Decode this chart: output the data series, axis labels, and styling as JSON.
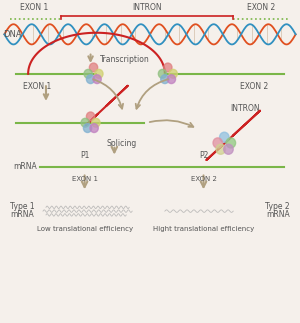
{
  "bg_color": "#f5f0eb",
  "exon1_label": "EXON 1",
  "exon2_label": "EXON 2",
  "intron_label": "INTRON",
  "dna_label": "DNA",
  "transcription_label": "Transcription",
  "mrna_label": "mRNA",
  "splicing_label": "Splicing",
  "p1_label": "P1",
  "p2_label": "P2",
  "exon1_label2": "EXON 1",
  "exon2_label2": "EXON 2",
  "type1_label": "Type 1",
  "mrna_label1": "mRNA",
  "type2_label": "Type 2",
  "mrna_label2": "mRNA",
  "low_eff": "Low translational efficiency",
  "high_eff": "Hight translational efficiency",
  "intron_label2": "INTRON",
  "green_color": "#7ab648",
  "red_color": "#cc2222",
  "arrow_color": "#b0a080",
  "text_color": "#555555",
  "dna_color1": "#e05020",
  "dna_color2": "#3090c0",
  "bubble_colors": [
    "#e08080",
    "#90c080",
    "#d0d070",
    "#80b0d0",
    "#c080c0"
  ],
  "bubble_colors2": [
    "#90c0e0",
    "#e090a0",
    "#90c880",
    "#d0d090",
    "#c090c0"
  ]
}
